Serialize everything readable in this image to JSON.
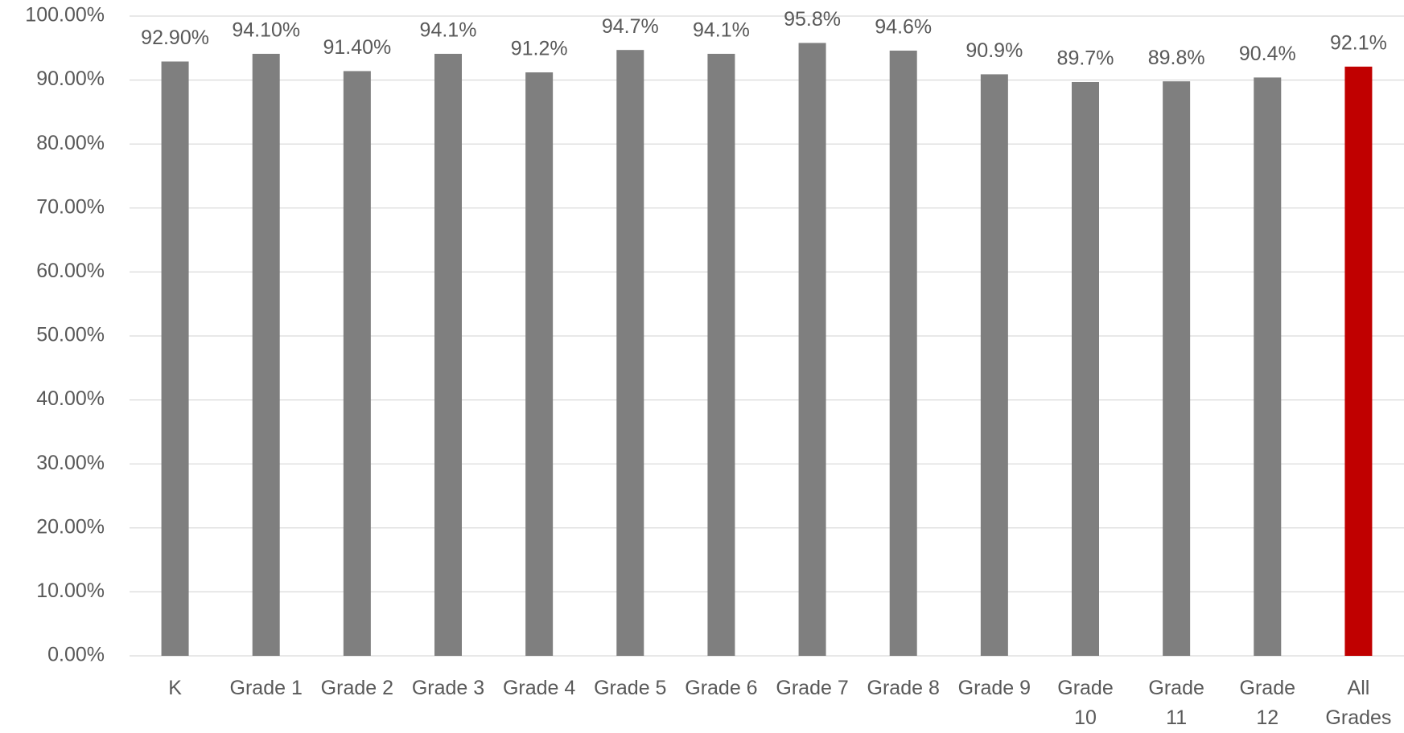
{
  "chart_data": {
    "type": "bar",
    "categories": [
      "K",
      "Grade 1",
      "Grade 2",
      "Grade 3",
      "Grade 4",
      "Grade 5",
      "Grade 6",
      "Grade 7",
      "Grade 8",
      "Grade 9",
      "Grade 10",
      "Grade 11",
      "Grade 12",
      "All Grades"
    ],
    "values": [
      92.9,
      94.1,
      91.4,
      94.1,
      91.2,
      94.7,
      94.1,
      95.8,
      94.6,
      90.9,
      89.7,
      89.8,
      90.4,
      92.1
    ],
    "value_labels": [
      "92.90%",
      "94.10%",
      "91.40%",
      "94.1%",
      "91.2%",
      "94.7%",
      "94.1%",
      "95.8%",
      "94.6%",
      "90.9%",
      "89.7%",
      "89.8%",
      "90.4%",
      "92.1%"
    ],
    "colors": [
      "#7f7f7f",
      "#7f7f7f",
      "#7f7f7f",
      "#7f7f7f",
      "#7f7f7f",
      "#7f7f7f",
      "#7f7f7f",
      "#7f7f7f",
      "#7f7f7f",
      "#7f7f7f",
      "#7f7f7f",
      "#7f7f7f",
      "#7f7f7f",
      "#c00000"
    ],
    "ylim": [
      0,
      100
    ],
    "yticks": [
      {
        "value": 0,
        "label": "0.00%"
      },
      {
        "value": 10,
        "label": "10.00%"
      },
      {
        "value": 20,
        "label": "20.00%"
      },
      {
        "value": 30,
        "label": "30.00%"
      },
      {
        "value": 40,
        "label": "40.00%"
      },
      {
        "value": 50,
        "label": "50.00%"
      },
      {
        "value": 60,
        "label": "60.00%"
      },
      {
        "value": 70,
        "label": "70.00%"
      },
      {
        "value": 80,
        "label": "80.00%"
      },
      {
        "value": 90,
        "label": "90.00%"
      },
      {
        "value": 100,
        "label": "100.00%"
      }
    ],
    "grid": true
  }
}
